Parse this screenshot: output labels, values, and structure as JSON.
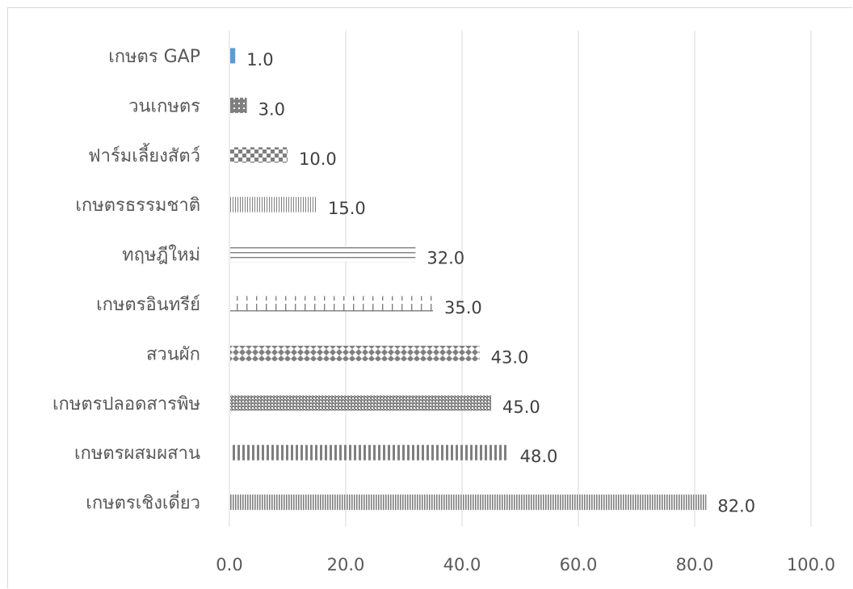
{
  "chart_data": {
    "type": "bar",
    "orientation": "horizontal",
    "categories": [
      "เกษตร GAP",
      "วนเกษตร",
      "ฟาร์มเลี้ยงสัตว์",
      "เกษตรธรรมชาติ",
      "ทฤษฎีใหม่",
      "เกษตรอินทรีย์",
      "สวนผัก",
      "เกษตรปลอดสารพิษ",
      "เกษตรผสมผสาน",
      "เกษตรเชิงเดี่ยว"
    ],
    "values": [
      1.0,
      3.0,
      10.0,
      15.0,
      32.0,
      35.0,
      43.0,
      45.0,
      48.0,
      82.0
    ],
    "value_labels": [
      "1.0",
      "3.0",
      "10.0",
      "15.0",
      "32.0",
      "35.0",
      "43.0",
      "45.0",
      "48.0",
      "82.0"
    ],
    "xlim": [
      0,
      100
    ],
    "xticks": [
      "0.0",
      "20.0",
      "40.0",
      "60.0",
      "80.0",
      "100.0"
    ],
    "xtick_values": [
      0,
      20,
      40,
      60,
      80,
      100
    ],
    "grid": "vertical",
    "title": "",
    "xlabel": "",
    "ylabel": "",
    "bar_fills": [
      "solid-blue",
      "checker-small",
      "checker-large",
      "vertical-thin",
      "horizontal-lines",
      "cross-ticks",
      "diamonds",
      "dotted-grid",
      "vertical-thick",
      "vertical-fine"
    ],
    "colors": {
      "accent": "#5b9bd5",
      "pattern": "#7f7f7f",
      "grid": "#d9d9d9",
      "text": "#595959"
    }
  }
}
